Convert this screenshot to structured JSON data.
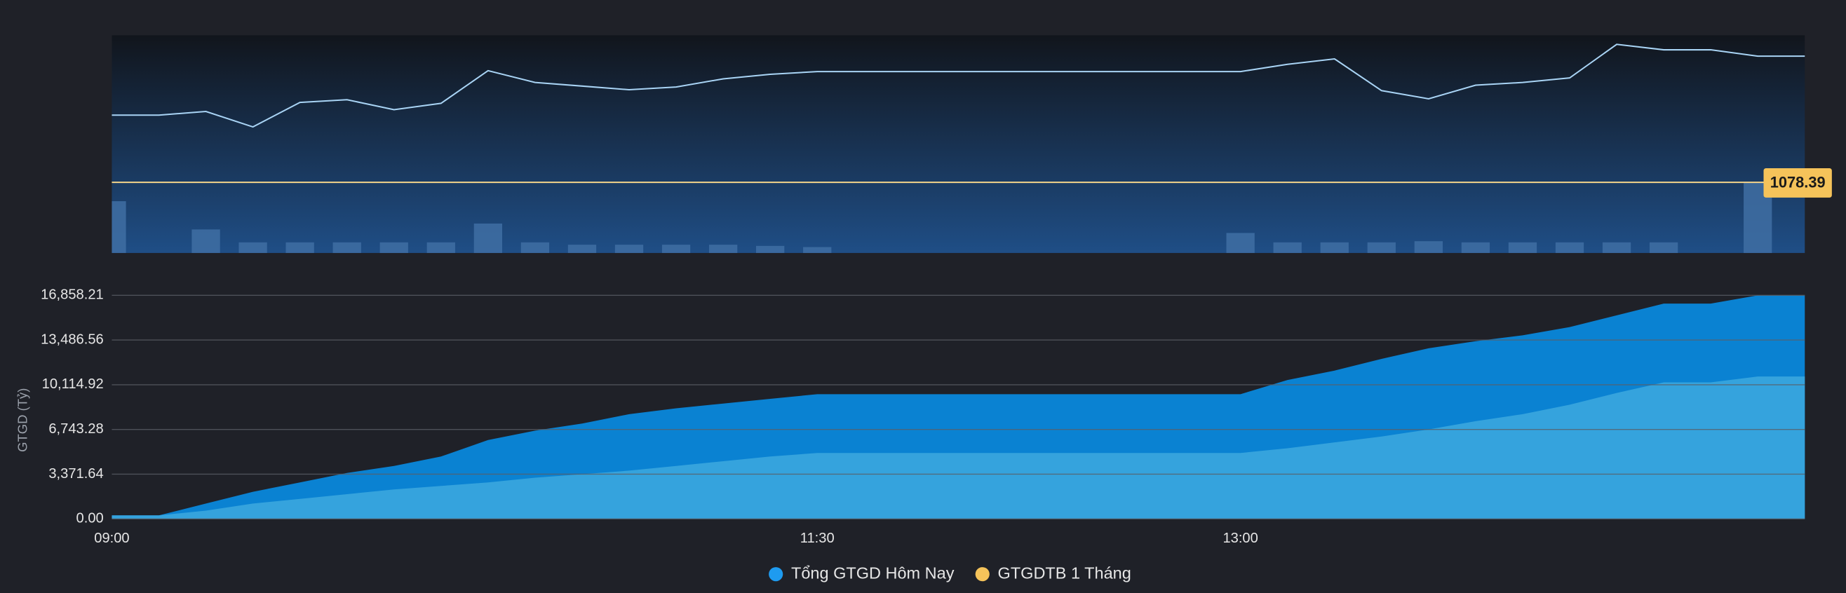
{
  "chart_data": [
    {
      "type": "line",
      "ylim": [
        1070.6,
        1094.6
      ],
      "y2lim": [
        0,
        100
      ],
      "reference": 1078.39,
      "reference_color": "#f5d58a",
      "series": [
        {
          "type": "line",
          "color": "#a9d4f5",
          "values": [
            1085.8,
            1085.8,
            1086.2,
            1084.5,
            1087.2,
            1087.5,
            1086.4,
            1087.1,
            1090.7,
            1089.4,
            1089.0,
            1088.6,
            1088.9,
            1089.8,
            1090.3,
            1090.6,
            1090.6,
            1090.6,
            1090.6,
            1090.6,
            1090.6,
            1090.6,
            1090.6,
            1090.6,
            1090.6,
            1091.4,
            1092.0,
            1088.5,
            1087.6,
            1089.1,
            1089.4,
            1089.9,
            1093.6,
            1093.0,
            1093.0,
            1092.3,
            1092.3
          ]
        },
        {
          "type": "bar",
          "axis": "y2",
          "color": "#3f6ea3",
          "values": [
            44,
            0,
            20,
            9,
            9,
            9,
            9,
            9,
            25,
            9,
            7,
            7,
            7,
            7,
            6,
            5,
            0,
            0,
            0,
            0,
            0,
            0,
            0,
            0,
            17,
            9,
            9,
            9,
            10,
            9,
            9,
            9,
            9,
            9,
            0,
            60,
            0
          ]
        }
      ]
    },
    {
      "type": "area",
      "categories": [
        "09:00",
        null,
        null,
        null,
        null,
        null,
        null,
        null,
        null,
        null,
        null,
        null,
        null,
        null,
        null,
        "11:30",
        null,
        null,
        null,
        null,
        null,
        null,
        null,
        null,
        "13:00",
        null,
        null,
        null,
        null,
        null,
        null,
        null,
        null,
        null,
        null,
        null,
        null
      ],
      "ylabel": "GTGD (Tỷ)",
      "ylim": [
        0,
        16858.21
      ],
      "yticks": [
        {
          "value": 0,
          "label": "0.00"
        },
        {
          "value": 3371.64,
          "label": "3,371.64"
        },
        {
          "value": 6743.28,
          "label": "6,743.28"
        },
        {
          "value": 10114.92,
          "label": "10,114.92"
        },
        {
          "value": 13486.56,
          "label": "13,486.56"
        },
        {
          "value": 16858.21,
          "label": "16,858.21"
        }
      ],
      "grid": true,
      "legend": "bottom",
      "series": [
        {
          "name": "Tổng GTGD Hôm Nay",
          "color": "#1e9bf0",
          "fill": "#0a82d2",
          "values": [
            266,
            266,
            1153,
            2041,
            2751,
            3460,
            3993,
            4703,
            5945,
            6655,
            7187,
            7897,
            8341,
            8696,
            9050,
            9405,
            9405,
            9405,
            9405,
            9405,
            9405,
            9405,
            9405,
            9405,
            9405,
            10470,
            11180,
            12067,
            12866,
            13398,
            13842,
            14463,
            15350,
            16237,
            16237,
            16858,
            16858
          ]
        },
        {
          "name": "GTGDTB 1 Tháng",
          "color": "#f5c35a",
          "fill": "#35a3dd",
          "values": [
            266,
            266,
            621,
            1153,
            1508,
            1863,
            2218,
            2484,
            2751,
            3106,
            3372,
            3638,
            3993,
            4348,
            4703,
            4969,
            4969,
            4969,
            4969,
            4969,
            4969,
            4969,
            4969,
            4969,
            4969,
            5324,
            5767,
            6211,
            6743,
            7364,
            7897,
            8607,
            9494,
            10293,
            10293,
            10736,
            10736
          ]
        }
      ]
    }
  ]
}
